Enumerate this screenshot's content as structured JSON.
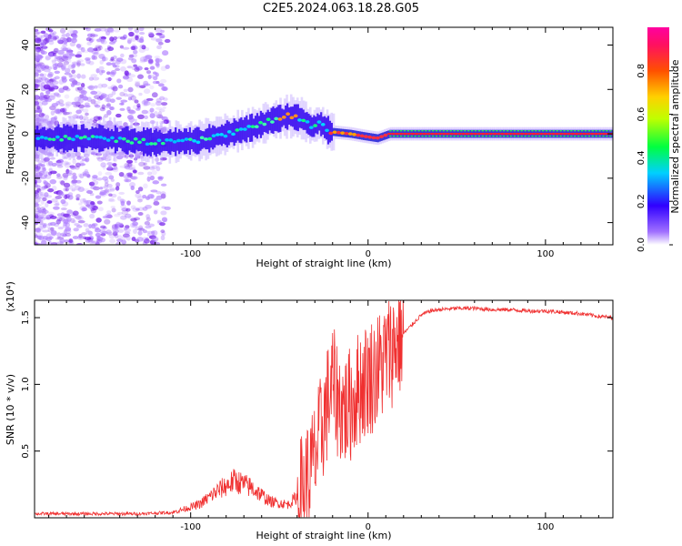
{
  "title": "C2E5.2024.063.18.28.G05",
  "chart_data": [
    {
      "type": "heatmap",
      "xlabel": "Height of straight line (km)",
      "ylabel": "Frequency (Hz)",
      "xlim": [
        -188,
        138
      ],
      "ylim": [
        -50,
        48
      ],
      "xticks": [
        -100,
        0,
        100
      ],
      "yticks": [
        -40,
        -20,
        0,
        20,
        40
      ],
      "colorbar": {
        "label": "Normalized spectral amplitude",
        "range": [
          0,
          1
        ],
        "ticks": [
          "0.0",
          "0.2",
          "0.4",
          "0.6",
          "0.8"
        ]
      },
      "ridge": [
        {
          "x": -188,
          "f": -2
        },
        {
          "x": -150,
          "f": -2
        },
        {
          "x": -120,
          "f": -4
        },
        {
          "x": -95,
          "f": -3
        },
        {
          "x": -80,
          "f": 0
        },
        {
          "x": -65,
          "f": 3
        },
        {
          "x": -55,
          "f": 6
        },
        {
          "x": -45,
          "f": 8
        },
        {
          "x": -38,
          "f": 7
        },
        {
          "x": -32,
          "f": 3
        },
        {
          "x": -28,
          "f": 5
        },
        {
          "x": -22,
          "f": 1
        },
        {
          "x": -10,
          "f": 0
        },
        {
          "x": -3,
          "f": -1
        },
        {
          "x": 5,
          "f": -2
        },
        {
          "x": 12,
          "f": 0
        },
        {
          "x": 138,
          "f": 0
        }
      ]
    },
    {
      "type": "line",
      "xlabel": "Height of straight line (km)",
      "ylabel": "SNR (10 * v/v)",
      "scale_label": "(x10⁴)",
      "xlim": [
        -188,
        138
      ],
      "ylim": [
        0,
        1.63
      ],
      "xticks": [
        -100,
        0,
        100
      ],
      "yticks": [
        "0.5",
        "1.0",
        "1.5"
      ],
      "series": [
        {
          "color": "#f03030",
          "x": [
            -188,
            -160,
            -130,
            -110,
            -95,
            -85,
            -75,
            -65,
            -55,
            -45,
            -38,
            -32,
            -28,
            -24,
            -20,
            -16,
            -12,
            -8,
            -4,
            0,
            5,
            10,
            15,
            20,
            25,
            30,
            35,
            40,
            50,
            60,
            70,
            80,
            90,
            100,
            110,
            120,
            130,
            138
          ],
          "y": [
            0.03,
            0.03,
            0.03,
            0.04,
            0.1,
            0.2,
            0.28,
            0.22,
            0.12,
            0.1,
            0.18,
            0.35,
            0.55,
            0.8,
            1.0,
            0.85,
            0.8,
            0.9,
            1.0,
            1.05,
            1.1,
            1.2,
            1.3,
            1.38,
            1.45,
            1.52,
            1.55,
            1.56,
            1.57,
            1.57,
            1.56,
            1.56,
            1.55,
            1.55,
            1.54,
            1.53,
            1.51,
            1.5
          ]
        }
      ]
    }
  ]
}
